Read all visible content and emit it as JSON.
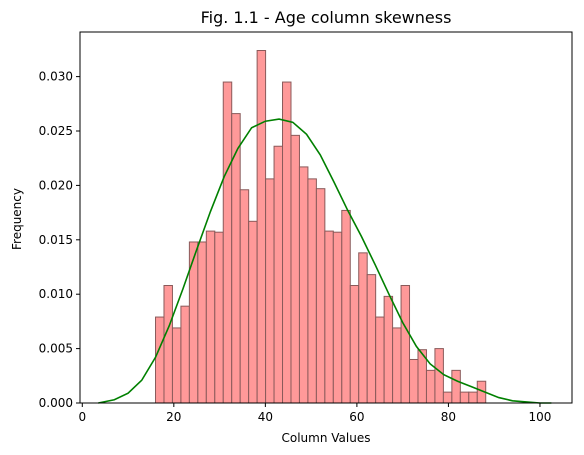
{
  "chart_data": {
    "type": "bar",
    "title": "Fig. 1.1 - Age column skewness",
    "xlabel": "Column Values",
    "ylabel": "Frequency",
    "xlim": [
      -0.5,
      107
    ],
    "ylim": [
      0,
      0.0341
    ],
    "xticks": [
      0,
      20,
      40,
      60,
      80,
      100
    ],
    "yticks": [
      0.0,
      0.005,
      0.01,
      0.015,
      0.02,
      0.025,
      0.03
    ],
    "ytick_labels": [
      "0.000",
      "0.005",
      "0.010",
      "0.015",
      "0.020",
      "0.025",
      "0.030"
    ],
    "grid": false,
    "histogram": {
      "bin_edges": [
        16,
        17.85,
        19.7,
        21.55,
        23.4,
        25.25,
        27.1,
        28.95,
        30.8,
        32.65,
        34.5,
        36.35,
        38.2,
        40.05,
        41.9,
        43.75,
        45.6,
        47.45,
        49.3,
        51.15,
        53.0,
        54.85,
        56.7,
        58.55,
        60.4,
        62.25,
        64.1,
        65.95,
        67.8,
        69.65,
        71.5,
        73.35,
        75.2,
        77.05,
        78.9,
        80.75,
        82.6,
        84.45,
        86.3,
        88.15,
        90.0
      ],
      "values": [
        0.0079,
        0.0108,
        0.0069,
        0.0089,
        0.0148,
        0.0148,
        0.0158,
        0.0157,
        0.0295,
        0.0266,
        0.0196,
        0.0167,
        0.0324,
        0.0206,
        0.0236,
        0.0295,
        0.0246,
        0.0217,
        0.0206,
        0.0197,
        0.0158,
        0.0157,
        0.0177,
        0.0108,
        0.0138,
        0.0118,
        0.0079,
        0.0098,
        0.0069,
        0.0108,
        0.004,
        0.0049,
        0.003,
        0.005,
        0.001,
        0.003,
        0.001,
        0.001,
        0.002,
        0.0
      ],
      "color": "#ff9999",
      "edgecolor": "#8a5a5a"
    },
    "kde": {
      "color": "#008000",
      "x": [
        3.5,
        7,
        10,
        13,
        16,
        19,
        22,
        25,
        28,
        31,
        34,
        37,
        40,
        43,
        46,
        49,
        52,
        55,
        58,
        61,
        64,
        67,
        70,
        73,
        76,
        79,
        82,
        85,
        88,
        91,
        94,
        97,
        100,
        102.5
      ],
      "y": [
        0.0,
        0.0003,
        0.0009,
        0.0021,
        0.0042,
        0.0071,
        0.0105,
        0.0141,
        0.0176,
        0.0208,
        0.0234,
        0.0253,
        0.0259,
        0.0261,
        0.0258,
        0.0247,
        0.0228,
        0.0203,
        0.0177,
        0.0153,
        0.0127,
        0.01,
        0.0074,
        0.0052,
        0.0036,
        0.0026,
        0.002,
        0.0015,
        0.001,
        0.0005,
        0.0002,
        0.0001,
        0.0,
        0.0
      ]
    }
  }
}
